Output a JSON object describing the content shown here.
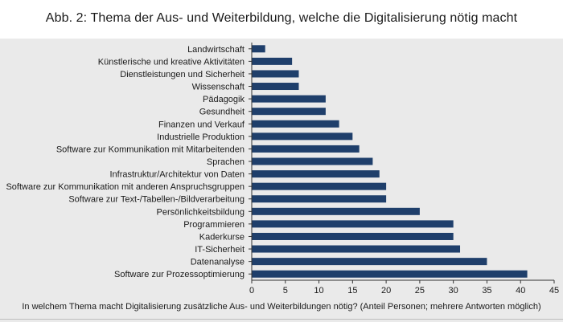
{
  "chart_data": {
    "type": "bar",
    "orientation": "horizontal",
    "title": "Abb. 2: Thema der Aus- und Weiterbildung, welche die Digitalisierung nötig macht",
    "xlabel": "In welchem Thema macht Digitalisierung zusätzliche Aus- und Weiterbildungen nötig? (Anteil Personen; mehrere Antworten möglich)",
    "ylabel": "",
    "xlim": [
      0,
      45
    ],
    "xticks": [
      0,
      5,
      10,
      15,
      20,
      25,
      30,
      35,
      40,
      45
    ],
    "grid": false,
    "legend": false,
    "bar_color": "#1f3f6b",
    "categories": [
      "Landwirtschaft",
      "Künstlerische und kreative Aktivitäten",
      "Dienstleistungen und Sicherheit",
      "Wissenschaft",
      "Pädagogik",
      "Gesundheit",
      "Finanzen und Verkauf",
      "Industrielle Produktion",
      "Software zur Kommunikation mit Mitarbeitenden",
      "Sprachen",
      "Infrastruktur/Architektur von Daten",
      "Software zur Kommunikation mit anderen Anspruchsgruppen",
      "Software zur Text-/Tabellen-/Bildverarbeitung",
      "Persönlichkeitsbildung",
      "Programmieren",
      "Kaderkurse",
      "IT-Sicherheit",
      "Datenanalyse",
      "Software zur Prozessoptimierung"
    ],
    "values": [
      2,
      6,
      7,
      7,
      11,
      11,
      13,
      15,
      16,
      18,
      19,
      20,
      20,
      25,
      30,
      30,
      31,
      35,
      41
    ]
  }
}
